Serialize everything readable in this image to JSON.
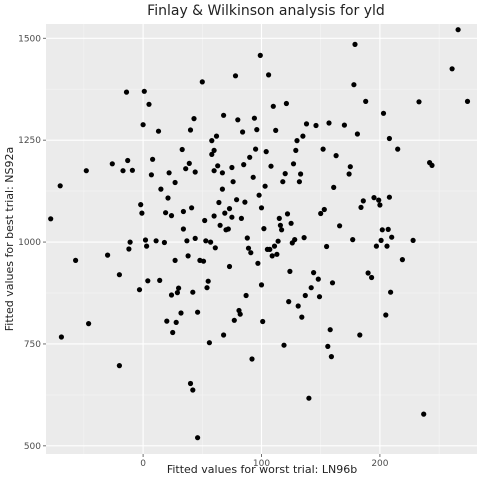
{
  "chart_data": {
    "type": "scatter",
    "title": "Finlay & Wilkinson analysis for yld",
    "xlabel": "Fitted values for worst trial: LN96b",
    "ylabel": "Fitted values for best trial: NS92a",
    "xlim": [
      -82,
      282
    ],
    "ylim": [
      480,
      1535
    ],
    "x_ticks": [
      0,
      100,
      200
    ],
    "y_ticks": [
      500,
      750,
      1000,
      1250,
      1500
    ],
    "x_minor": [
      -50,
      50,
      150,
      250
    ],
    "y_minor": [
      625,
      875,
      1125,
      1375
    ],
    "grid": true,
    "legend": "none",
    "point_color": "#000000",
    "panel_color": "#ebebeb",
    "points": [
      [
        -78,
        1057
      ],
      [
        -70,
        1138
      ],
      [
        -69,
        767
      ],
      [
        -57,
        955
      ],
      [
        -48,
        1175
      ],
      [
        -46,
        800
      ],
      [
        -30,
        968
      ],
      [
        -26,
        1192
      ],
      [
        -20,
        920
      ],
      [
        -20,
        697
      ],
      [
        -17,
        1175
      ],
      [
        -14,
        1368
      ],
      [
        -13,
        1200
      ],
      [
        -12,
        983
      ],
      [
        -11,
        1000
      ],
      [
        -9,
        1176
      ],
      [
        -3,
        883
      ],
      [
        -2,
        1092
      ],
      [
        -1,
        1071
      ],
      [
        0,
        1288
      ],
      [
        1,
        1370
      ],
      [
        2,
        1005
      ],
      [
        3,
        990
      ],
      [
        4,
        905
      ],
      [
        5,
        1338
      ],
      [
        7,
        1165
      ],
      [
        8,
        1203
      ],
      [
        11,
        1003
      ],
      [
        13,
        1272
      ],
      [
        14,
        906
      ],
      [
        15,
        1130
      ],
      [
        18,
        999
      ],
      [
        19,
        1072
      ],
      [
        20,
        806
      ],
      [
        21,
        1108
      ],
      [
        22,
        1170
      ],
      [
        24,
        1065
      ],
      [
        24,
        870
      ],
      [
        25,
        778
      ],
      [
        27,
        1146
      ],
      [
        27,
        955
      ],
      [
        28,
        803
      ],
      [
        29,
        876
      ],
      [
        30,
        887
      ],
      [
        32,
        826
      ],
      [
        33,
        1227
      ],
      [
        34,
        1075
      ],
      [
        34,
        1032
      ],
      [
        36,
        1180
      ],
      [
        37,
        1003
      ],
      [
        38,
        966
      ],
      [
        39,
        1193
      ],
      [
        40,
        1275
      ],
      [
        40,
        653
      ],
      [
        41,
        1084
      ],
      [
        42,
        877
      ],
      [
        42,
        637
      ],
      [
        43,
        1303
      ],
      [
        44,
        1009
      ],
      [
        44,
        1172
      ],
      [
        46,
        828
      ],
      [
        46,
        520
      ],
      [
        48,
        955
      ],
      [
        50,
        1393
      ],
      [
        51,
        953
      ],
      [
        52,
        1053
      ],
      [
        53,
        1003
      ],
      [
        54,
        888
      ],
      [
        55,
        904
      ],
      [
        56,
        753
      ],
      [
        57,
        1000
      ],
      [
        58,
        1215
      ],
      [
        58,
        1249
      ],
      [
        60,
        1225
      ],
      [
        60,
        1175
      ],
      [
        60,
        1064
      ],
      [
        61,
        986
      ],
      [
        62,
        1260
      ],
      [
        63,
        1187
      ],
      [
        64,
        1097
      ],
      [
        65,
        1041
      ],
      [
        67,
        1170
      ],
      [
        67,
        1130
      ],
      [
        68,
        1311
      ],
      [
        68,
        772
      ],
      [
        69,
        1071
      ],
      [
        70,
        1030
      ],
      [
        72,
        1032
      ],
      [
        73,
        940
      ],
      [
        73,
        1082
      ],
      [
        75,
        1183
      ],
      [
        75,
        1061
      ],
      [
        76,
        1148
      ],
      [
        77,
        808
      ],
      [
        78,
        1408
      ],
      [
        79,
        1104
      ],
      [
        80,
        1300
      ],
      [
        81,
        832
      ],
      [
        82,
        823
      ],
      [
        83,
        1058
      ],
      [
        84,
        1270
      ],
      [
        85,
        1190
      ],
      [
        86,
        1098
      ],
      [
        87,
        869
      ],
      [
        88,
        1010
      ],
      [
        89,
        985
      ],
      [
        90,
        1208
      ],
      [
        91,
        974
      ],
      [
        92,
        713
      ],
      [
        93,
        1159
      ],
      [
        94,
        1304
      ],
      [
        95,
        1228
      ],
      [
        96,
        1276
      ],
      [
        97,
        948
      ],
      [
        98,
        1115
      ],
      [
        99,
        1458
      ],
      [
        100,
        895
      ],
      [
        100,
        1084
      ],
      [
        101,
        805
      ],
      [
        102,
        1033
      ],
      [
        103,
        1137
      ],
      [
        104,
        1222
      ],
      [
        105,
        982
      ],
      [
        106,
        1410
      ],
      [
        107,
        982
      ],
      [
        108,
        1186
      ],
      [
        109,
        966
      ],
      [
        110,
        1333
      ],
      [
        111,
        990
      ],
      [
        112,
        1274
      ],
      [
        113,
        970
      ],
      [
        114,
        1002
      ],
      [
        115,
        1058
      ],
      [
        116,
        1041
      ],
      [
        117,
        1030
      ],
      [
        118,
        1148
      ],
      [
        119,
        747
      ],
      [
        120,
        1168
      ],
      [
        121,
        1340
      ],
      [
        122,
        1069
      ],
      [
        123,
        854
      ],
      [
        124,
        928
      ],
      [
        125,
        1046
      ],
      [
        126,
        998
      ],
      [
        127,
        1192
      ],
      [
        128,
        1006
      ],
      [
        129,
        1225
      ],
      [
        130,
        1249
      ],
      [
        131,
        843
      ],
      [
        132,
        1148
      ],
      [
        133,
        1167
      ],
      [
        134,
        816
      ],
      [
        135,
        1260
      ],
      [
        136,
        1011
      ],
      [
        137,
        869
      ],
      [
        138,
        1290
      ],
      [
        140,
        617
      ],
      [
        142,
        888
      ],
      [
        144,
        925
      ],
      [
        146,
        1286
      ],
      [
        148,
        909
      ],
      [
        149,
        866
      ],
      [
        150,
        1070
      ],
      [
        152,
        1228
      ],
      [
        153,
        1080
      ],
      [
        155,
        989
      ],
      [
        156,
        744
      ],
      [
        157,
        1292
      ],
      [
        158,
        785
      ],
      [
        159,
        719
      ],
      [
        160,
        900
      ],
      [
        161,
        1134
      ],
      [
        163,
        1212
      ],
      [
        166,
        1040
      ],
      [
        170,
        1287
      ],
      [
        174,
        1167
      ],
      [
        175,
        1185
      ],
      [
        177,
        1006
      ],
      [
        178,
        1386
      ],
      [
        179,
        1485
      ],
      [
        181,
        1265
      ],
      [
        183,
        772
      ],
      [
        184,
        1085
      ],
      [
        186,
        1101
      ],
      [
        188,
        1345
      ],
      [
        190,
        924
      ],
      [
        193,
        913
      ],
      [
        195,
        1109
      ],
      [
        197,
        990
      ],
      [
        199,
        1103
      ],
      [
        200,
        1091
      ],
      [
        201,
        1004
      ],
      [
        202,
        1030
      ],
      [
        203,
        1316
      ],
      [
        205,
        821
      ],
      [
        206,
        990
      ],
      [
        207,
        1031
      ],
      [
        208,
        1110
      ],
      [
        208,
        1254
      ],
      [
        209,
        877
      ],
      [
        210,
        1012
      ],
      [
        215,
        1228
      ],
      [
        219,
        957
      ],
      [
        228,
        1004
      ],
      [
        233,
        1344
      ],
      [
        237,
        578
      ],
      [
        242,
        1195
      ],
      [
        244,
        1188
      ],
      [
        261,
        1425
      ],
      [
        266,
        1521
      ],
      [
        274,
        1345
      ]
    ]
  }
}
